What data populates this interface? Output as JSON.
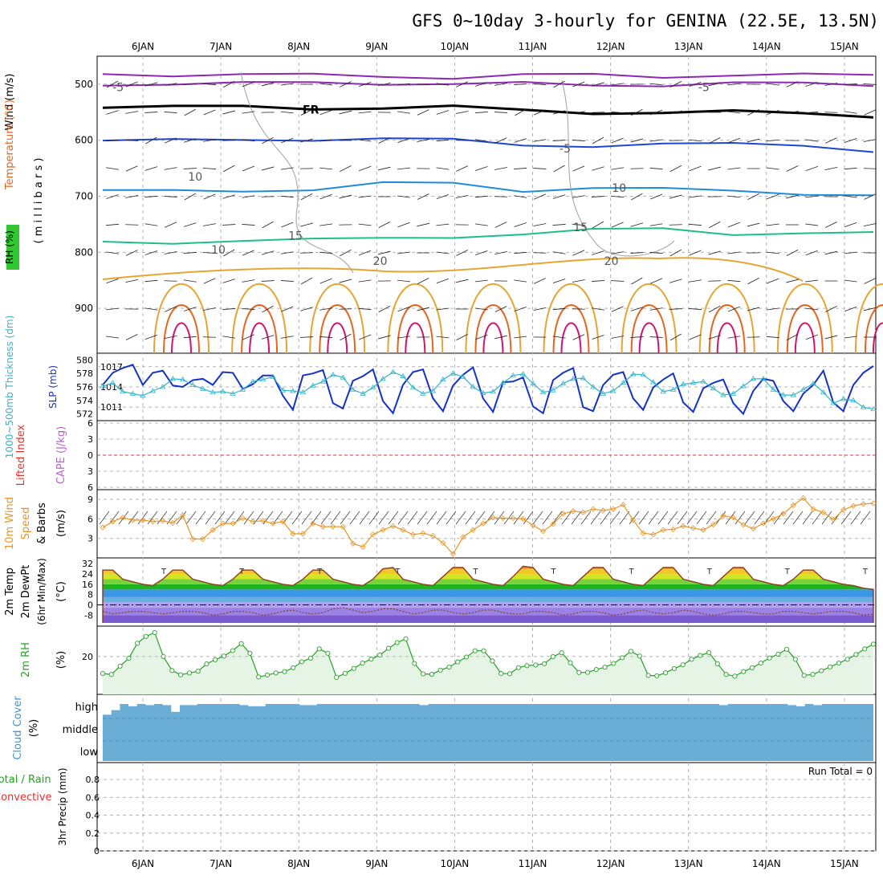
{
  "title": "GFS 0~10day 3-hourly for GENINA (22.5E, 13.5N)",
  "colors": {
    "frame": "#000000",
    "grid": "#b4b4b4",
    "t_neg5": "#8c28b4",
    "t_freeze": "#000000",
    "t_5": "#1e46d2",
    "t_10": "#1e8cdc",
    "t_15": "#1ebe8c",
    "t_20": "#e6a532",
    "t_25": "#e6641e",
    "t_30": "#d2146e",
    "rh_contour": "#a0a0a0",
    "slp": "#1432c8",
    "thickness": "#32b4c8",
    "lifted_zero": "#e63232",
    "wind10": "#e69628",
    "rh2m": "#28a028",
    "rh2m_fill": "#e6f4e6",
    "cloud": "#6aaed6",
    "cloud_gap": "#ffffff"
  },
  "chart_data": [
    {
      "panel": "Upper air",
      "type": "line",
      "x_ticks": [
        "6JAN",
        "7JAN",
        "8JAN",
        "9JAN",
        "10JAN",
        "11JAN",
        "12JAN",
        "13JAN",
        "14JAN",
        "15JAN"
      ],
      "ylabel_left": [
        "Wind (m/s)",
        "Temperature (°C)",
        "RH (%)"
      ],
      "ylabel_units": "( m i l l i b a r s )",
      "yticks": [
        500,
        600,
        700,
        800,
        900
      ],
      "ylim": [
        980,
        450
      ],
      "contour_labels": [
        {
          "text": "-5",
          "x": 0.2,
          "p": 505
        },
        {
          "text": "-5",
          "x": 7.8,
          "p": 505
        },
        {
          "text": "FR",
          "x": 2.7,
          "p": 545
        },
        {
          "text": "-5",
          "x": 6.0,
          "p": 615
        },
        {
          "text": "10",
          "x": 1.2,
          "p": 665
        },
        {
          "text": "10",
          "x": 6.7,
          "p": 685
        },
        {
          "text": "15",
          "x": 2.5,
          "p": 770
        },
        {
          "text": "15",
          "x": 6.2,
          "p": 755
        },
        {
          "text": "10",
          "x": 1.5,
          "p": 795
        },
        {
          "text": "20",
          "x": 3.6,
          "p": 815
        },
        {
          "text": "20",
          "x": 6.6,
          "p": 815
        }
      ],
      "series": [
        {
          "color": "t_neg5",
          "values": [
            482,
            482,
            483,
            485,
            485,
            487,
            485,
            484,
            485,
            483,
            485,
            484
          ]
        },
        {
          "color": "t_neg5",
          "values": [
            499,
            499,
            500,
            497,
            497,
            500,
            500,
            501,
            500,
            499,
            500,
            500
          ]
        },
        {
          "color": "t_freeze",
          "values": [
            538,
            541,
            542,
            542,
            541,
            542,
            547,
            549,
            551,
            551,
            551,
            555
          ]
        },
        {
          "color": "t_5",
          "values": [
            600,
            602,
            599,
            597,
            598,
            601,
            607,
            609,
            609,
            607,
            606,
            620
          ]
        },
        {
          "color": "t_10",
          "values": [
            692,
            691,
            688,
            688,
            679,
            676,
            688,
            686,
            689,
            688,
            694,
            701
          ]
        },
        {
          "color": "t_15",
          "values": [
            785,
            783,
            776,
            778,
            777,
            771,
            766,
            762,
            758,
            765,
            766,
            768
          ]
        }
      ]
    },
    {
      "panel": "SLP / thickness",
      "type": "line",
      "ylabel_left": "1000~500mb Thickness (dm)",
      "ylabel_right": "SLP (mb)",
      "yticks_left": [
        572,
        574,
        576,
        578,
        580
      ],
      "yticks_right": [
        1011,
        1014,
        1017
      ],
      "series": [
        {
          "name": "SLP (mb)",
          "color": "slp",
          "values": [
            1014.3,
            1016.1,
            1016.8,
            1017.3,
            1014.3,
            1016.1,
            1016.4,
            1014.2,
            1014.0,
            1015.0,
            1015.2,
            1014.3,
            1016.2,
            1016.1,
            1013.7,
            1014.4,
            1015.7,
            1015.7,
            1012.7,
            1010.6,
            1015.7,
            1016.0,
            1016.5,
            1011.6,
            1010.8,
            1014.9,
            1015.6,
            1016.6,
            1011.9,
            1010.1,
            1014.3,
            1016.2,
            1016.6,
            1012.3,
            1010.4,
            1014.2,
            1015.8,
            1016.9,
            1012.3,
            1010.3,
            1014.7,
            1014.8,
            1015.4,
            1011.1,
            1010.1,
            1015.0,
            1016.1,
            1016.8,
            1011.0,
            1010.4,
            1014.3,
            1015.8,
            1016.2,
            1012.3,
            1010.6,
            1013.9,
            1015.1,
            1016.0,
            1011.7,
            1010.3,
            1013.8,
            1014.6,
            1015.1,
            1011.6,
            1010.0,
            1013.4,
            1015.2,
            1014.9,
            1011.9,
            1010.4,
            1013.0,
            1014.3,
            1016.4,
            1011.7,
            1010.4,
            1014.3,
            1016.1,
            1017.1
          ]
        },
        {
          "name": "Thickness (dm)",
          "color": "thickness",
          "values": [
            576.1,
            576.6,
            575.3,
            575.0,
            574.7,
            575.4,
            576.0,
            577.2,
            577.1,
            576.3,
            575.7,
            575.2,
            575.3,
            575.0,
            575.6,
            576.8,
            577.1,
            577.5,
            575.5,
            575.4,
            575.2,
            576.2,
            576.8,
            577.8,
            577.4,
            575.6,
            575.0,
            575.9,
            577.2,
            578.2,
            577.6,
            575.9,
            575.0,
            575.4,
            577.1,
            578.0,
            577.5,
            576.0,
            575.1,
            575.3,
            576.6,
            577.7,
            577.9,
            576.5,
            575.2,
            575.5,
            576.5,
            577.2,
            577.3,
            576.0,
            575.0,
            575.4,
            576.6,
            577.9,
            577.8,
            576.7,
            575.3,
            575.6,
            576.4,
            576.6,
            576.8,
            575.8,
            574.8,
            575.0,
            576.1,
            577.2,
            577.2,
            575.6,
            574.8,
            574.8,
            575.6,
            576.5,
            575.2,
            573.6,
            574.2,
            574.0,
            573.0,
            572.7
          ]
        }
      ]
    },
    {
      "panel": "Stability",
      "type": "line",
      "ylabel_left": [
        "Lifted Index",
        "CAPE (J/kg)"
      ],
      "yticks": [
        "6",
        "3",
        "0",
        "3",
        "6"
      ],
      "series": []
    },
    {
      "panel": "10m wind",
      "type": "line",
      "ylabel_left": [
        "10m Wind",
        "Speed",
        "& Barbs",
        "(m/s)"
      ],
      "yticks": [
        3,
        6,
        9
      ],
      "series": [
        {
          "name": "10m Wind Speed",
          "color": "wind10",
          "values": [
            4.7,
            5.6,
            6.2,
            5.8,
            5.8,
            5.6,
            5.7,
            5.4,
            6.6,
            2.9,
            2.9,
            4.3,
            5.3,
            5.3,
            6.1,
            5.6,
            5.7,
            5.3,
            5.6,
            3.7,
            3.7,
            5.3,
            4.8,
            4.8,
            4.8,
            2.2,
            1.7,
            3.6,
            4.3,
            4.9,
            4.3,
            3.6,
            3.8,
            3.4,
            2.3,
            0.6,
            3.2,
            4.3,
            5.3,
            6.2,
            6.1,
            6.1,
            6.0,
            5.0,
            4.1,
            5.2,
            6.8,
            7.2,
            7.0,
            7.5,
            7.3,
            7.5,
            8.2,
            5.8,
            3.8,
            3.6,
            4.3,
            4.4,
            4.9,
            4.6,
            4.3,
            5.1,
            6.5,
            6.2,
            5.1,
            4.5,
            5.3,
            6.0,
            6.8,
            8.1,
            9.2,
            7.5,
            7.0,
            5.9,
            7.4,
            8.0,
            8.3,
            8.4
          ]
        }
      ]
    },
    {
      "panel": "2m temperature",
      "type": "area",
      "ylabel_left": [
        "2m Temp",
        "2m DewPt",
        "(6hr Min/Max)",
        "(°C)"
      ],
      "yticks": [
        -8,
        0,
        8,
        16,
        24,
        32
      ],
      "series": [
        {
          "name": "2m Temp",
          "color": "#8c3c1e",
          "values": [
            27.0,
            27.0,
            20.0,
            18.0,
            16.0,
            15.0,
            20.0,
            27.0,
            27.0,
            20.0,
            18.0,
            16.0,
            15.0,
            20.0,
            27.0,
            27.0,
            20.0,
            18.0,
            16.0,
            15.0,
            20.0,
            27.0,
            27.0,
            20.0,
            18.0,
            16.0,
            15.0,
            20.0,
            28.0,
            29.0,
            20.0,
            18.0,
            16.0,
            15.0,
            22.0,
            29.0,
            29.0,
            20.0,
            18.0,
            16.0,
            15.0,
            22.0,
            30.0,
            29.0,
            20.0,
            18.0,
            16.0,
            15.0,
            22.0,
            29.0,
            29.0,
            20.0,
            18.0,
            16.0,
            15.0,
            22.0,
            29.0,
            29.0,
            20.0,
            18.0,
            16.0,
            15.0,
            22.0,
            29.0,
            29.0,
            20.0,
            18.0,
            16.0,
            15.0,
            20.0,
            27.0,
            27.0,
            20.0,
            18.0,
            16.0,
            15.0,
            13.0,
            12.0
          ]
        },
        {
          "name": "2m DewPt",
          "color": "#8c3c1e",
          "values": [
            -5.0,
            -7.0,
            -6.0,
            -5.0,
            -5.0,
            -6.0,
            -7.0,
            -6.0,
            -5.0,
            -5.0,
            -6.0,
            -8.0,
            -7.0,
            -5.0,
            -5.0,
            -6.0,
            -8.0,
            -7.0,
            -5.0,
            -4.0,
            -6.0,
            -7.0,
            -6.0,
            -3.0,
            -2.0,
            -4.0,
            -6.0,
            -5.0,
            -3.0,
            -3.0,
            -5.0,
            -7.0,
            -6.0,
            -4.0,
            -4.0,
            -6.0,
            -7.0,
            -6.0,
            -4.0,
            -4.0,
            -6.0,
            -7.0,
            -7.0,
            -5.0,
            -5.0,
            -6.0,
            -8.0,
            -7.0,
            -5.0,
            -5.0,
            -6.0,
            -8.0,
            -7.0,
            -5.0,
            -4.0,
            -6.0,
            -7.0,
            -6.0,
            -4.0,
            -5.0,
            -7.0,
            -8.0,
            -7.0,
            -5.0,
            -5.0,
            -6.0,
            -7.0,
            -7.0,
            -5.0,
            -5.0,
            -6.0,
            -7.0,
            -6.0,
            -5.0,
            -5.0,
            -6.0,
            -8.0,
            -7.0
          ]
        }
      ]
    },
    {
      "panel": "2m RH",
      "type": "area",
      "ylabel_left": [
        "2m RH",
        "(%)"
      ],
      "yticks": [
        20
      ],
      "series": [
        {
          "name": "2m RH",
          "color": "rh2m",
          "values": [
            11.0,
            10.5,
            14.9,
            19.0,
            27.0,
            30.6,
            32.6,
            20.0,
            12.6,
            10.3,
            11.3,
            12.2,
            16.1,
            18.3,
            20.2,
            23.1,
            26.8,
            21.7,
            9.2,
            10.2,
            11.3,
            12.0,
            14.0,
            17.2,
            19.1,
            24.0,
            21.7,
            9.0,
            11.1,
            13.7,
            16.5,
            18.6,
            20.7,
            24.3,
            27.3,
            29.3,
            16.3,
            10.8,
            10.6,
            12.8,
            14.4,
            17.1,
            19.7,
            23.0,
            23.0,
            17.6,
            11.0,
            10.9,
            14.1,
            15.1,
            15.5,
            16.2,
            19.9,
            22.0,
            16.7,
            11.5,
            11.6,
            13.1,
            14.3,
            16.3,
            19.3,
            22.7,
            20.2,
            10.0,
            9.8,
            11.4,
            13.6,
            15.6,
            18.5,
            20.5,
            22.1,
            16.2,
            10.5,
            9.6,
            12.0,
            14.0,
            16.5,
            19.2,
            21.2,
            23.8,
            18.5,
            10.0,
            10.5,
            12.5,
            14.5,
            16.5,
            18.5,
            21.0,
            24.0,
            26.5
          ]
        }
      ]
    },
    {
      "panel": "Cloud Cover",
      "type": "heatmap",
      "ylabel_left": [
        "Cloud Cover",
        "(%)"
      ],
      "yticks": [
        "high",
        "middle",
        "low"
      ],
      "gaps_high": [
        0.95,
        0.55,
        0.0,
        0.2,
        0.0,
        0.1,
        0.0,
        0.1,
        0.7,
        0.1,
        0.1,
        0.0,
        0.0,
        0.0,
        0.0,
        0.0,
        0.1,
        0.2,
        0.2,
        0.0,
        0.0,
        0.0,
        0.0,
        0.1,
        0.1,
        0.0,
        0.0,
        0.0,
        0.0,
        0.0,
        0.0,
        0.0,
        0.0,
        0.0,
        0.0,
        0.0,
        0.0,
        0.1,
        0.0,
        0.0,
        0.0,
        0.0,
        0.0,
        0.0,
        0.0,
        0.0,
        0.0,
        0.0,
        0.0,
        0.0,
        0.0,
        0.0,
        0.0,
        0.0,
        0.0,
        0.0,
        0.0,
        0.0,
        0.0,
        0.0,
        0.0,
        0.0,
        0.0,
        0.0,
        0.0,
        0.0,
        0.0,
        0.0,
        0.0,
        0.0,
        0.0,
        0.0,
        0.1,
        0.0,
        0.0,
        0.0,
        0.0,
        0.0,
        0.0,
        0.0,
        0.1,
        0.2,
        0.0,
        0.1,
        0.0,
        0.0,
        0.0,
        0.0,
        0.0,
        0.0
      ]
    },
    {
      "panel": "Precipitation",
      "type": "bar",
      "ylabel_left": [
        "Total / Rain",
        "Convective",
        "3hr Precip (mm)"
      ],
      "yticks": [
        0,
        0.2,
        0.4,
        0.6,
        0.8
      ],
      "annotation": "Run Total = 0",
      "series": []
    }
  ]
}
